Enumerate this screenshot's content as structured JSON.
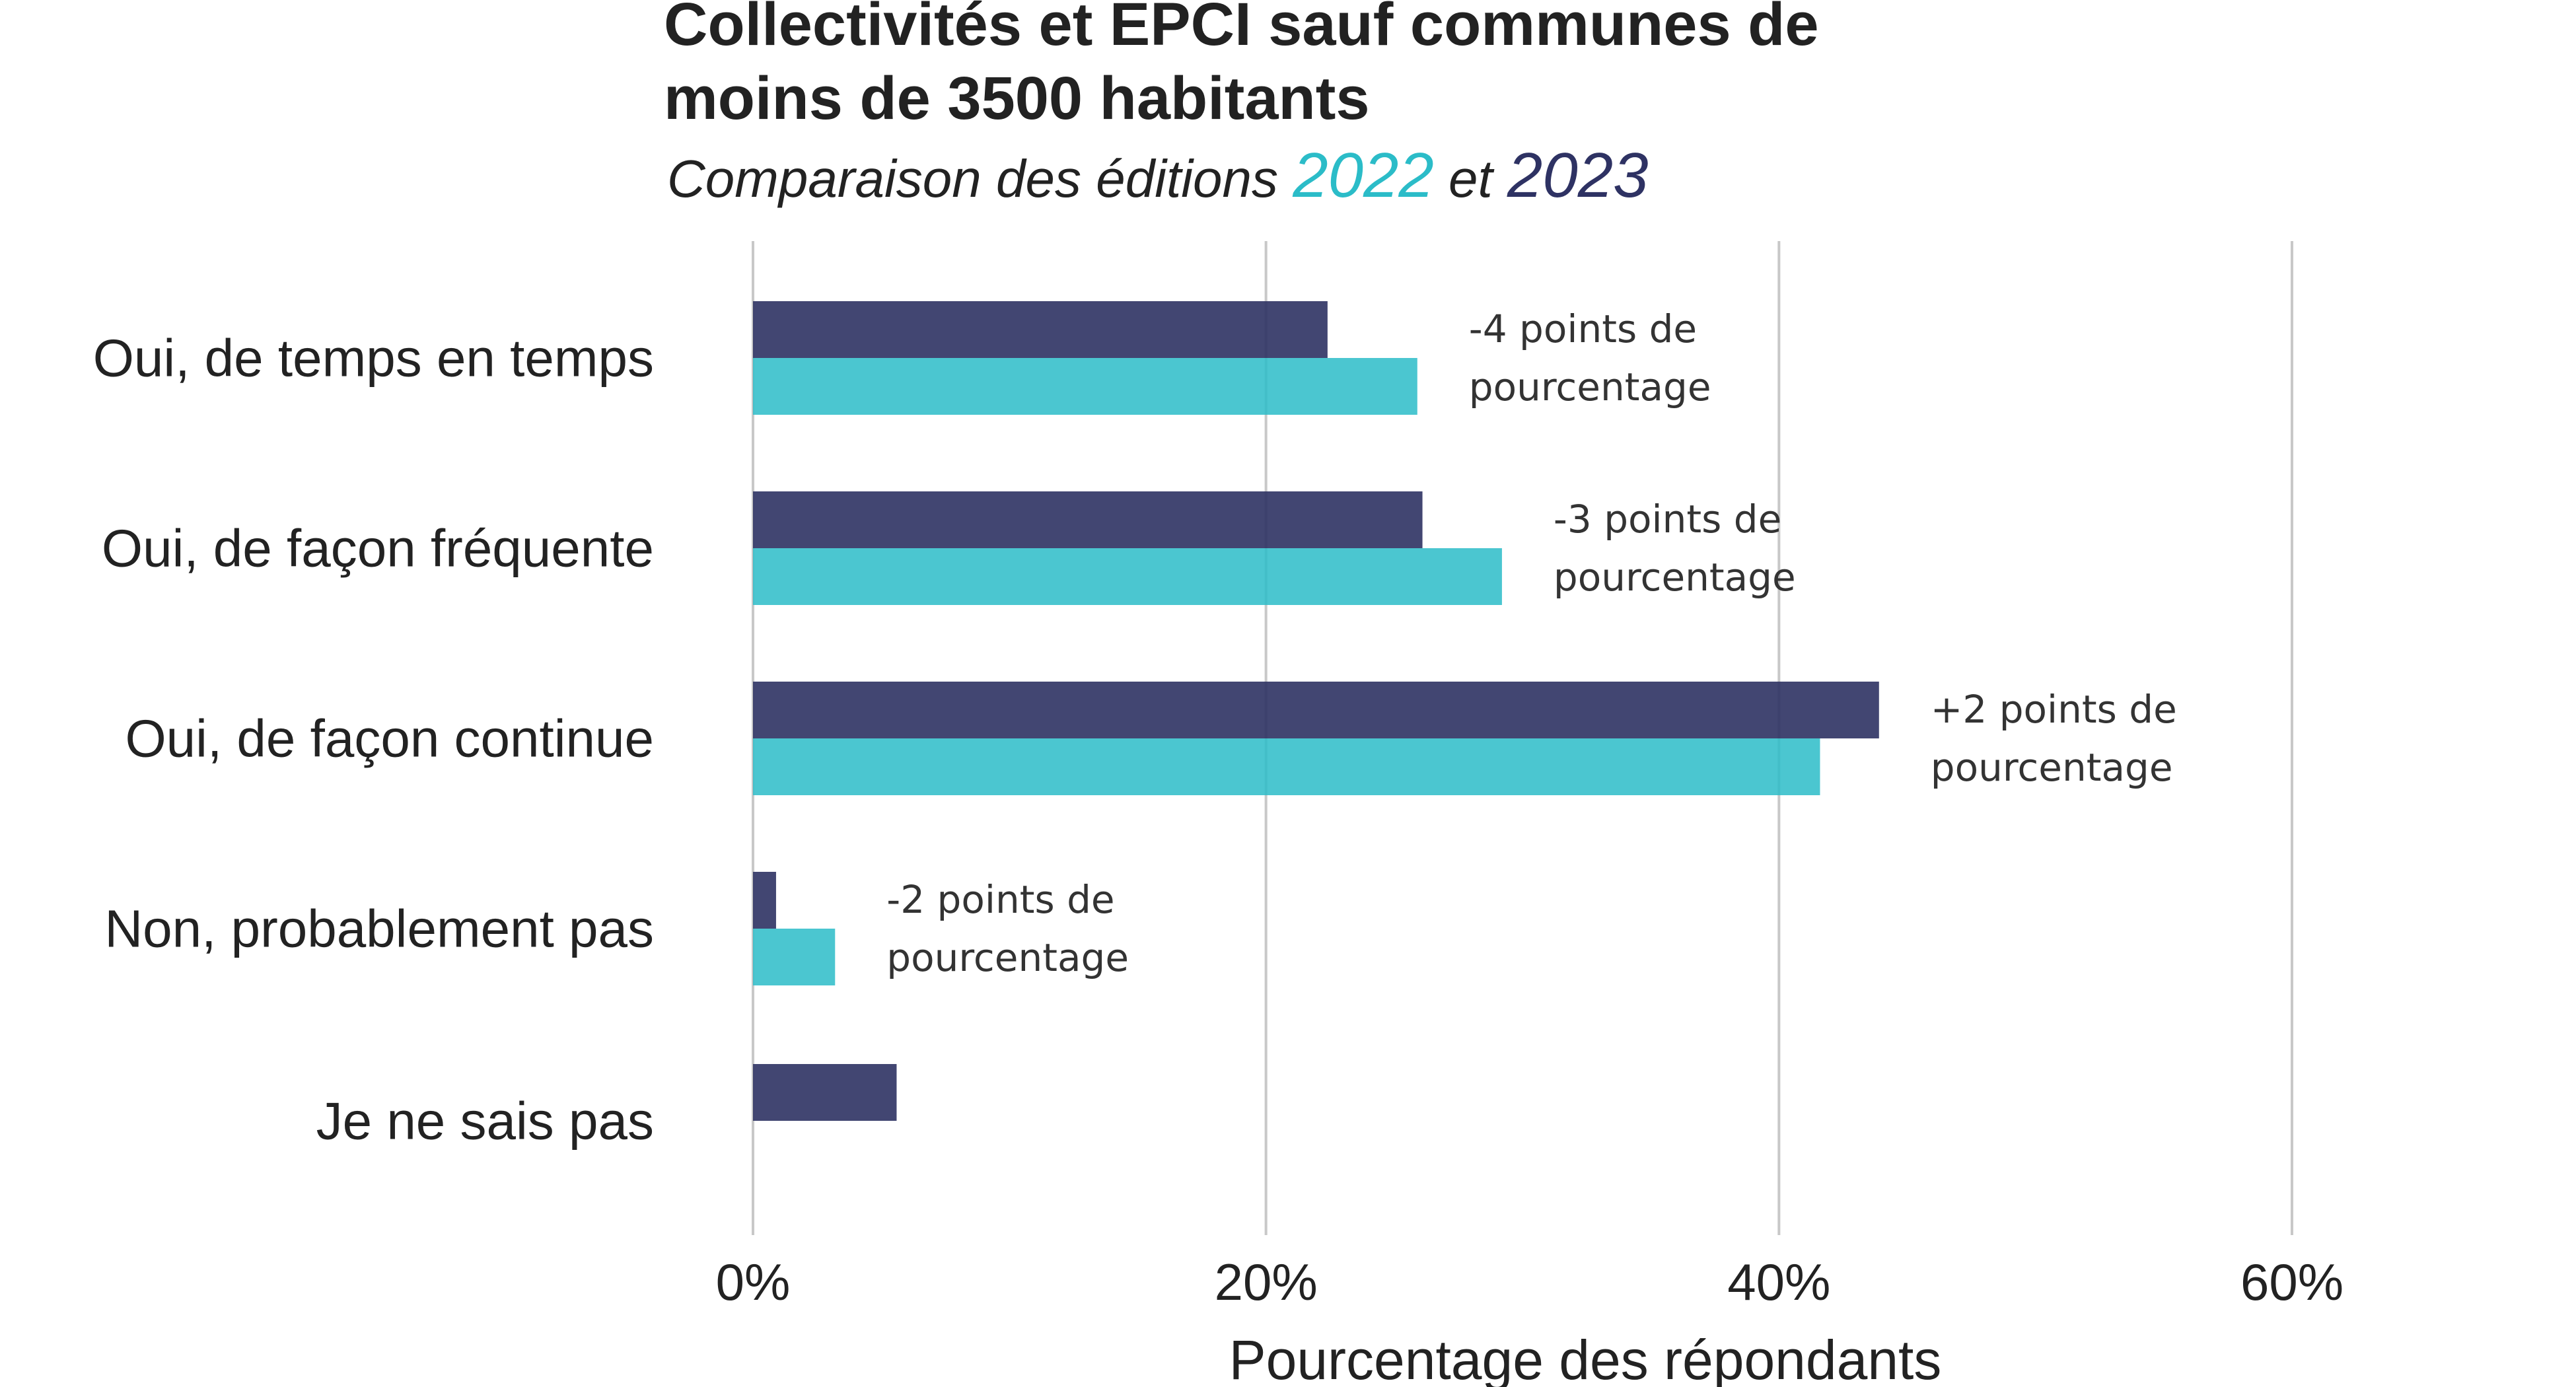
{
  "colors": {
    "2022": "#2bbcc8",
    "2023": "#2e3263",
    "grid": "#c8c8c8",
    "text": "#222222"
  },
  "chart_data": {
    "type": "bar",
    "orientation": "horizontal",
    "title_lines": [
      "Collectivités et EPCI sauf communes de",
      "moins de 3500 habitants"
    ],
    "subtitle": {
      "prefix": "Comparaison des éditions ",
      "year_a": "2022",
      "middle": " et ",
      "year_b": "2023"
    },
    "xlabel": "Pourcentage des répondants",
    "xlim": [
      0,
      70
    ],
    "xticks": [
      0,
      20,
      40,
      60
    ],
    "xtick_labels": [
      "0%",
      "20%",
      "40%",
      "60%"
    ],
    "grid": true,
    "categories": [
      "Oui, de temps en temps",
      "Oui, de façon fréquente",
      "Oui, de façon continue",
      "Non, probablement pas",
      "Je ne sais pas"
    ],
    "series": [
      {
        "name": "2023",
        "values": [
          22.4,
          26.1,
          43.9,
          0.9,
          5.6
        ]
      },
      {
        "name": "2022",
        "values": [
          25.9,
          29.2,
          41.6,
          3.2,
          null
        ]
      }
    ],
    "annotations": [
      {
        "line1": "-4 points de",
        "line2": "pourcentage"
      },
      {
        "line1": "-3 points de",
        "line2": "pourcentage"
      },
      {
        "line1": "+2 points de",
        "line2": "pourcentage"
      },
      {
        "line1": "-2 points de",
        "line2": "pourcentage"
      },
      null
    ]
  }
}
